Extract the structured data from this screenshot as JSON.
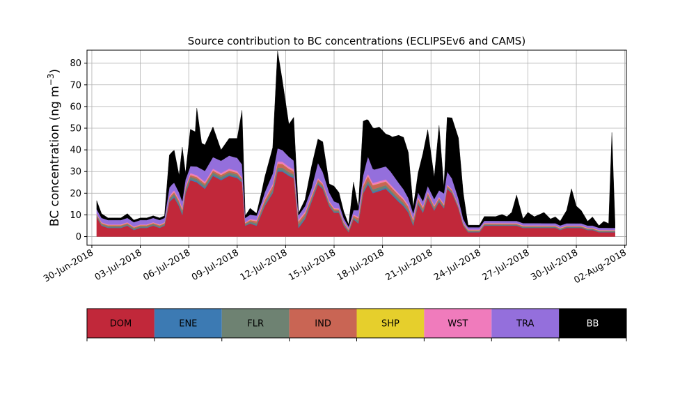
{
  "chart_data": {
    "type": "area",
    "stacked": true,
    "title": "Source contribution to BC concentrations (ECLIPSEv6 and CAMS)",
    "ylabel_main": "BC concentration (ng m",
    "ylabel_sup": "−3",
    "ylabel_close": ")",
    "xlabel": "",
    "ylim": [
      -4,
      86
    ],
    "yticks": [
      0,
      10,
      20,
      30,
      40,
      50,
      60,
      70,
      80
    ],
    "xlim": [
      -0.3,
      33.1
    ],
    "xticks": [
      {
        "pos": 0,
        "label": "30-Jun-2018"
      },
      {
        "pos": 3,
        "label": "03-Jul-2018"
      },
      {
        "pos": 6,
        "label": "06-Jul-2018"
      },
      {
        "pos": 9,
        "label": "09-Jul-2018"
      },
      {
        "pos": 12,
        "label": "12-Jul-2018"
      },
      {
        "pos": 15,
        "label": "15-Jul-2018"
      },
      {
        "pos": 18,
        "label": "18-Jul-2018"
      },
      {
        "pos": 21,
        "label": "21-Jul-2018"
      },
      {
        "pos": 24,
        "label": "24-Jul-2018"
      },
      {
        "pos": 27,
        "label": "27-Jul-2018"
      },
      {
        "pos": 30,
        "label": "30-Jul-2018"
      },
      {
        "pos": 33,
        "label": "02-Aug-2018"
      }
    ],
    "x_unit": "days since 30-Jun-2018",
    "grid": true,
    "legend": "colorbar below plot",
    "series": [
      {
        "name": "DOM",
        "color": "#c1283a",
        "text_color": "#000000",
        "values": [
          [
            0.3,
            9
          ],
          [
            0.6,
            5
          ],
          [
            1.0,
            4
          ],
          [
            1.4,
            4
          ],
          [
            1.8,
            4
          ],
          [
            2.2,
            5
          ],
          [
            2.6,
            3
          ],
          [
            3.0,
            4
          ],
          [
            3.4,
            4
          ],
          [
            3.8,
            5
          ],
          [
            4.2,
            4
          ],
          [
            4.5,
            5
          ],
          [
            4.8,
            16
          ],
          [
            5.1,
            18
          ],
          [
            5.4,
            14
          ],
          [
            5.6,
            10
          ],
          [
            5.8,
            20
          ],
          [
            6.1,
            26
          ],
          [
            6.5,
            25
          ],
          [
            7.0,
            22
          ],
          [
            7.5,
            28
          ],
          [
            8.0,
            26
          ],
          [
            8.5,
            28
          ],
          [
            9.0,
            27
          ],
          [
            9.3,
            25
          ],
          [
            9.5,
            5
          ],
          [
            9.8,
            6
          ],
          [
            10.2,
            5
          ],
          [
            10.7,
            14
          ],
          [
            11.2,
            20
          ],
          [
            11.5,
            30
          ],
          [
            11.8,
            30
          ],
          [
            12.2,
            28
          ],
          [
            12.5,
            27
          ],
          [
            12.8,
            4
          ],
          [
            13.2,
            8
          ],
          [
            13.6,
            16
          ],
          [
            14.0,
            24
          ],
          [
            14.3,
            22
          ],
          [
            14.7,
            14
          ],
          [
            15.0,
            11
          ],
          [
            15.3,
            11
          ],
          [
            15.6,
            5
          ],
          [
            15.9,
            2
          ],
          [
            16.2,
            8
          ],
          [
            16.5,
            6
          ],
          [
            16.8,
            20
          ],
          [
            17.1,
            24
          ],
          [
            17.4,
            20
          ],
          [
            17.8,
            21
          ],
          [
            18.2,
            22
          ],
          [
            18.6,
            19
          ],
          [
            19.0,
            16
          ],
          [
            19.3,
            14
          ],
          [
            19.6,
            11
          ],
          [
            19.9,
            5
          ],
          [
            20.2,
            15
          ],
          [
            20.5,
            11
          ],
          [
            20.8,
            18
          ],
          [
            21.2,
            12
          ],
          [
            21.5,
            16
          ],
          [
            21.8,
            13
          ],
          [
            22.0,
            22
          ],
          [
            22.3,
            20
          ],
          [
            22.7,
            13
          ],
          [
            23.0,
            5
          ],
          [
            23.3,
            2
          ],
          [
            23.7,
            2
          ],
          [
            24.0,
            2
          ],
          [
            24.3,
            5
          ],
          [
            24.7,
            5
          ],
          [
            25.0,
            5
          ],
          [
            25.4,
            5
          ],
          [
            25.7,
            5
          ],
          [
            26.0,
            5
          ],
          [
            26.3,
            5
          ],
          [
            26.7,
            4
          ],
          [
            27.0,
            4
          ],
          [
            27.4,
            4
          ],
          [
            27.7,
            4
          ],
          [
            28.0,
            4
          ],
          [
            28.4,
            4
          ],
          [
            28.7,
            4
          ],
          [
            29.0,
            3
          ],
          [
            29.4,
            4
          ],
          [
            29.7,
            4
          ],
          [
            30.0,
            4
          ],
          [
            30.3,
            4
          ],
          [
            30.7,
            3
          ],
          [
            31.0,
            3
          ],
          [
            31.4,
            2
          ],
          [
            31.7,
            2
          ],
          [
            32.0,
            2
          ],
          [
            32.4,
            2
          ]
        ]
      },
      {
        "name": "ENE",
        "color": "#3c7ab3",
        "text_color": "#000000",
        "values": [
          [
            0.3,
            0.2
          ],
          [
            4.5,
            0.2
          ],
          [
            5.0,
            0.6
          ],
          [
            9.0,
            0.6
          ],
          [
            9.5,
            0.2
          ],
          [
            11.5,
            0.6
          ],
          [
            13.0,
            0.6
          ],
          [
            16.0,
            0.2
          ],
          [
            17.0,
            0.6
          ],
          [
            19.0,
            0.6
          ],
          [
            23.0,
            0.2
          ],
          [
            32.4,
            0.2
          ]
        ]
      },
      {
        "name": "FLR",
        "color": "#6e8272",
        "text_color": "#000000",
        "values": [
          [
            0.3,
            0.6
          ],
          [
            4.5,
            0.6
          ],
          [
            5.0,
            1.0
          ],
          [
            9.0,
            1.0
          ],
          [
            9.5,
            0.6
          ],
          [
            11.5,
            1.2
          ],
          [
            13.0,
            1.0
          ],
          [
            16.0,
            0.5
          ],
          [
            17.0,
            1.2
          ],
          [
            19.0,
            1.0
          ],
          [
            23.0,
            0.4
          ],
          [
            32.4,
            0.3
          ]
        ]
      },
      {
        "name": "IND",
        "color": "#c96554",
        "text_color": "#000000",
        "values": [
          [
            0.3,
            0.4
          ],
          [
            4.5,
            0.4
          ],
          [
            5.0,
            0.8
          ],
          [
            9.0,
            0.8
          ],
          [
            9.5,
            0.4
          ],
          [
            11.5,
            1.8
          ],
          [
            13.0,
            1.2
          ],
          [
            16.0,
            0.4
          ],
          [
            17.0,
            2.0
          ],
          [
            19.0,
            1.5
          ],
          [
            23.0,
            0.3
          ],
          [
            32.4,
            0.2
          ]
        ]
      },
      {
        "name": "SHP",
        "color": "#e6cf2c",
        "text_color": "#000000",
        "values": [
          [
            0.3,
            0.1
          ],
          [
            32.4,
            0.1
          ]
        ]
      },
      {
        "name": "WST",
        "color": "#f07bbc",
        "text_color": "#000000",
        "values": [
          [
            0.3,
            0.3
          ],
          [
            4.5,
            0.3
          ],
          [
            5.0,
            0.8
          ],
          [
            9.0,
            0.8
          ],
          [
            9.5,
            0.3
          ],
          [
            11.5,
            1.0
          ],
          [
            13.0,
            0.8
          ],
          [
            16.0,
            0.3
          ],
          [
            17.0,
            1.0
          ],
          [
            19.0,
            0.8
          ],
          [
            23.0,
            0.3
          ],
          [
            32.4,
            0.2
          ]
        ]
      },
      {
        "name": "TRA",
        "color": "#946fdc",
        "text_color": "#000000",
        "values": [
          [
            0.3,
            2
          ],
          [
            4.5,
            2
          ],
          [
            4.8,
            4
          ],
          [
            5.4,
            3
          ],
          [
            6.0,
            3
          ],
          [
            7.0,
            5
          ],
          [
            8.5,
            6
          ],
          [
            9.3,
            6
          ],
          [
            9.5,
            2
          ],
          [
            10.5,
            2
          ],
          [
            11.0,
            4
          ],
          [
            11.5,
            6
          ],
          [
            12.0,
            5
          ],
          [
            12.5,
            4
          ],
          [
            12.8,
            2
          ],
          [
            13.6,
            3
          ],
          [
            14.0,
            7
          ],
          [
            14.3,
            5
          ],
          [
            15.0,
            3
          ],
          [
            15.9,
            1
          ],
          [
            16.8,
            4
          ],
          [
            17.1,
            8
          ],
          [
            17.5,
            6
          ],
          [
            18.5,
            6
          ],
          [
            19.3,
            4
          ],
          [
            20.0,
            2
          ],
          [
            21.5,
            3
          ],
          [
            22.0,
            6
          ],
          [
            22.3,
            5
          ],
          [
            22.7,
            3
          ],
          [
            23.2,
            1
          ],
          [
            26.0,
            1
          ],
          [
            29.0,
            1
          ],
          [
            30.0,
            1
          ],
          [
            32.4,
            1
          ]
        ]
      },
      {
        "name": "BB",
        "color": "#000000",
        "text_color": "#ffffff",
        "values": [
          [
            0.3,
            4
          ],
          [
            0.6,
            2
          ],
          [
            1.0,
            1
          ],
          [
            1.4,
            1
          ],
          [
            1.8,
            1
          ],
          [
            2.2,
            2
          ],
          [
            2.6,
            1
          ],
          [
            3.0,
            1
          ],
          [
            3.4,
            1
          ],
          [
            3.8,
            1
          ],
          [
            4.2,
            1
          ],
          [
            4.5,
            1
          ],
          [
            4.8,
            15
          ],
          [
            5.1,
            15
          ],
          [
            5.4,
            8
          ],
          [
            5.6,
            25
          ],
          [
            5.8,
            3
          ],
          [
            6.1,
            17
          ],
          [
            6.4,
            16
          ],
          [
            6.5,
            27
          ],
          [
            6.8,
            12
          ],
          [
            7.0,
            12
          ],
          [
            7.5,
            14
          ],
          [
            8.0,
            5
          ],
          [
            8.5,
            8
          ],
          [
            9.0,
            9
          ],
          [
            9.3,
            25
          ],
          [
            9.5,
            1
          ],
          [
            9.8,
            3
          ],
          [
            10.2,
            1
          ],
          [
            10.7,
            7
          ],
          [
            11.2,
            12
          ],
          [
            11.5,
            45
          ],
          [
            11.8,
            32
          ],
          [
            12.2,
            15
          ],
          [
            12.5,
            20
          ],
          [
            12.8,
            1
          ],
          [
            13.2,
            3
          ],
          [
            13.6,
            10
          ],
          [
            14.0,
            11
          ],
          [
            14.3,
            14
          ],
          [
            14.7,
            4
          ],
          [
            15.0,
            7
          ],
          [
            15.3,
            5
          ],
          [
            15.6,
            3
          ],
          [
            15.9,
            1
          ],
          [
            16.2,
            13
          ],
          [
            16.5,
            1
          ],
          [
            16.8,
            25
          ],
          [
            17.1,
            17
          ],
          [
            17.4,
            19
          ],
          [
            17.8,
            19
          ],
          [
            18.2,
            15
          ],
          [
            18.6,
            17
          ],
          [
            19.0,
            22
          ],
          [
            19.3,
            24
          ],
          [
            19.6,
            21
          ],
          [
            19.9,
            3
          ],
          [
            20.2,
            9
          ],
          [
            20.5,
            22
          ],
          [
            20.8,
            26
          ],
          [
            21.2,
            10
          ],
          [
            21.5,
            30
          ],
          [
            21.8,
            3
          ],
          [
            22.0,
            25
          ],
          [
            22.3,
            28
          ],
          [
            22.7,
            28
          ],
          [
            23.0,
            12
          ],
          [
            23.3,
            1
          ],
          [
            23.7,
            1
          ],
          [
            24.0,
            1
          ],
          [
            24.3,
            2
          ],
          [
            24.7,
            2
          ],
          [
            25.0,
            2
          ],
          [
            25.4,
            3
          ],
          [
            25.7,
            2
          ],
          [
            26.0,
            4
          ],
          [
            26.3,
            12
          ],
          [
            26.7,
            2
          ],
          [
            27.0,
            5
          ],
          [
            27.4,
            3
          ],
          [
            27.7,
            4
          ],
          [
            28.0,
            5
          ],
          [
            28.4,
            2
          ],
          [
            28.7,
            3
          ],
          [
            29.0,
            2
          ],
          [
            29.4,
            6
          ],
          [
            29.7,
            16
          ],
          [
            30.0,
            8
          ],
          [
            30.3,
            6
          ],
          [
            30.7,
            2
          ],
          [
            31.0,
            4
          ],
          [
            31.4,
            1
          ],
          [
            31.7,
            3
          ],
          [
            32.0,
            2
          ],
          [
            32.2,
            44
          ],
          [
            32.4,
            2
          ]
        ]
      }
    ]
  }
}
